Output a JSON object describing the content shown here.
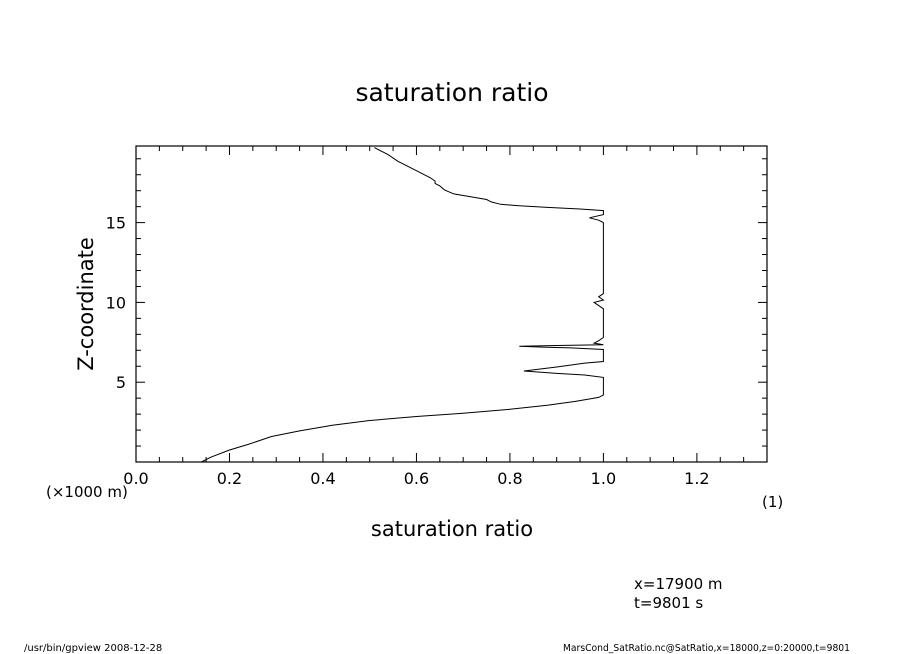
{
  "chart_data": {
    "type": "line",
    "title": "saturation ratio",
    "xlabel": "saturation ratio",
    "ylabel": "Z-coordinate",
    "y_unit_label": "(×1000 m)",
    "x_unit_label": "(1)",
    "xlim": [
      0.0,
      1.35
    ],
    "ylim": [
      0,
      19.8
    ],
    "x_ticks": [
      "0.0",
      "0.2",
      "0.4",
      "0.6",
      "0.8",
      "1.0",
      "1.2"
    ],
    "y_ticks": [
      "5",
      "10",
      "15"
    ],
    "grid": false,
    "series": [
      {
        "points": [
          [
            0.14,
            0.0
          ],
          [
            0.16,
            0.3
          ],
          [
            0.2,
            0.75
          ],
          [
            0.24,
            1.1
          ],
          [
            0.29,
            1.6
          ],
          [
            0.35,
            1.95
          ],
          [
            0.42,
            2.3
          ],
          [
            0.5,
            2.6
          ],
          [
            0.6,
            2.85
          ],
          [
            0.7,
            3.05
          ],
          [
            0.8,
            3.3
          ],
          [
            0.88,
            3.55
          ],
          [
            0.94,
            3.8
          ],
          [
            0.99,
            4.05
          ],
          [
            1.0,
            4.2
          ],
          [
            1.0,
            4.6
          ],
          [
            1.0,
            5.0
          ],
          [
            1.0,
            5.3
          ],
          [
            0.96,
            5.45
          ],
          [
            0.9,
            5.55
          ],
          [
            0.83,
            5.7
          ],
          [
            0.9,
            5.95
          ],
          [
            0.96,
            6.2
          ],
          [
            1.0,
            6.3
          ],
          [
            1.0,
            6.6
          ],
          [
            1.0,
            7.05
          ],
          [
            0.93,
            7.15
          ],
          [
            0.87,
            7.2
          ],
          [
            0.82,
            7.25
          ],
          [
            0.9,
            7.3
          ],
          [
            1.0,
            7.35
          ],
          [
            0.98,
            7.45
          ],
          [
            0.99,
            7.6
          ],
          [
            1.0,
            7.8
          ],
          [
            1.0,
            8.5
          ],
          [
            1.0,
            9.2
          ],
          [
            1.0,
            9.6
          ],
          [
            0.99,
            9.8
          ],
          [
            0.98,
            10.0
          ],
          [
            1.0,
            10.15
          ],
          [
            0.99,
            10.35
          ],
          [
            1.0,
            10.55
          ],
          [
            1.0,
            11.0
          ],
          [
            1.0,
            12.0
          ],
          [
            1.0,
            13.0
          ],
          [
            1.0,
            14.0
          ],
          [
            1.0,
            15.0
          ],
          [
            0.99,
            15.15
          ],
          [
            0.97,
            15.3
          ],
          [
            1.0,
            15.5
          ],
          [
            1.0,
            15.75
          ],
          [
            0.95,
            15.85
          ],
          [
            0.88,
            15.95
          ],
          [
            0.82,
            16.05
          ],
          [
            0.78,
            16.15
          ],
          [
            0.76,
            16.3
          ],
          [
            0.75,
            16.45
          ],
          [
            0.73,
            16.55
          ],
          [
            0.68,
            16.8
          ],
          [
            0.66,
            17.05
          ],
          [
            0.65,
            17.3
          ],
          [
            0.64,
            17.45
          ],
          [
            0.64,
            17.6
          ],
          [
            0.63,
            17.8
          ],
          [
            0.61,
            18.1
          ],
          [
            0.58,
            18.55
          ],
          [
            0.56,
            18.85
          ],
          [
            0.54,
            19.25
          ],
          [
            0.51,
            19.7
          ]
        ]
      }
    ]
  },
  "info": {
    "x_value": "x=17900 m",
    "t_value": "t=9801 s"
  },
  "footer": {
    "left": "/usr/bin/gpview   2008-12-28",
    "right": "MarsCond_SatRatio.nc@SatRatio,x=18000,z=0:20000,t=9801"
  }
}
